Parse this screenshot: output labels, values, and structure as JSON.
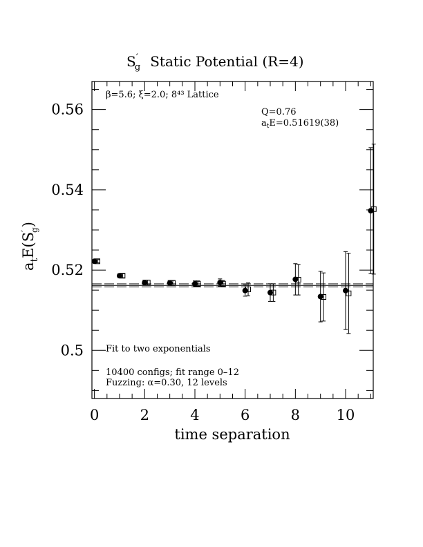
{
  "chart_data": {
    "type": "scatter",
    "title": {
      "main": "S",
      "prime": "′",
      "sub": "g",
      "rest": "Static Potential (R=4)"
    },
    "xlabel": "time separation",
    "ylabel": {
      "main": "a",
      "sub1": "t",
      "mid": "E(S",
      "prime": "′",
      "sub2": "g",
      "end": ")"
    },
    "xlim": [
      -0.1,
      11.1
    ],
    "ylim": [
      0.488,
      0.567
    ],
    "x_ticks": [
      "0",
      "2",
      "4",
      "6",
      "8",
      "10"
    ],
    "y_ticks": [
      "0.5",
      "0.52",
      "0.54",
      "0.56"
    ],
    "annotations": {
      "lattice": "β=5.6; ξ=2.0; 8⁴³ Lattice",
      "q": "Q=0.76",
      "energy_prefix": "a",
      "energy_sub": "t",
      "energy_value": "E=0.51619(38)",
      "fit": "Fit to two exponentials",
      "configs": "10400 configs; fit range 0–12",
      "fuzzing": "Fuzzing: α=0.30, 12 levels"
    },
    "fit_line": {
      "value": 0.51619,
      "err": 0.00038
    },
    "series": [
      {
        "marker": "filled-circle",
        "x": [
          0,
          1,
          2,
          3,
          4,
          5,
          6,
          7,
          8,
          9,
          10,
          11
        ],
        "y": [
          0.5222,
          0.5186,
          0.5169,
          0.5168,
          0.5166,
          0.5169,
          0.5149,
          0.5144,
          0.5177,
          0.5134,
          0.5149,
          0.5348
        ],
        "err": [
          0.0004,
          0.0005,
          0.0006,
          0.0006,
          0.0007,
          0.0009,
          0.0014,
          0.0022,
          0.0039,
          0.0063,
          0.0097,
          0.0157
        ]
      },
      {
        "marker": "open-square",
        "x": [
          0.12,
          1.12,
          2.12,
          3.12,
          4.12,
          5.12,
          6.12,
          7.12,
          8.12,
          9.12,
          10.12,
          11.12
        ],
        "y": [
          0.5222,
          0.5186,
          0.5169,
          0.5168,
          0.5166,
          0.5166,
          0.5152,
          0.5144,
          0.5176,
          0.5133,
          0.5142,
          0.5352
        ],
        "err": [
          0.0004,
          0.0005,
          0.0006,
          0.0006,
          0.0007,
          0.0008,
          0.0016,
          0.0022,
          0.0038,
          0.006,
          0.01,
          0.0162
        ]
      }
    ]
  }
}
